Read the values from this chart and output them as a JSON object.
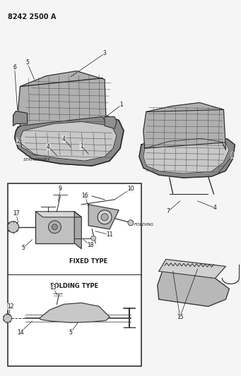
{
  "title": "8242 2500 A",
  "bg_color": "#f5f5f5",
  "text_color": "#1a1a1a",
  "figsize": [
    3.41,
    5.33
  ],
  "dpi": 100,
  "labels": {
    "stationary": "STATIONARY",
    "folding": "FOLDING",
    "folding_type": "FOLDING TYPE",
    "fixed_type": "FIXED TYPE"
  }
}
